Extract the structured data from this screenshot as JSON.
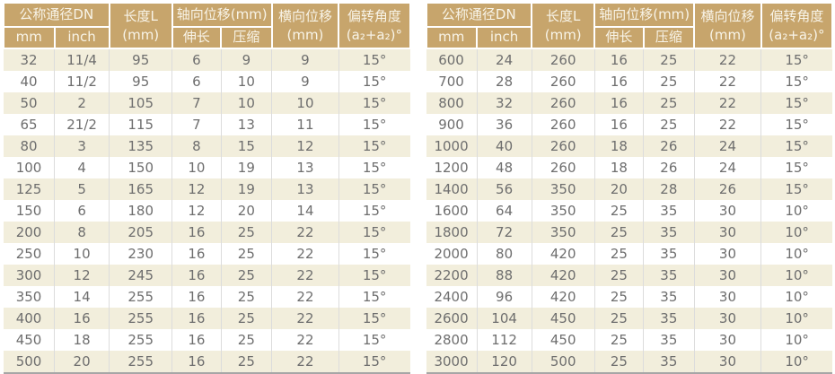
{
  "colors": {
    "header_bg": "#c7a56c",
    "header_text": "#f8f4e8",
    "stripe_row_bg": "#f2eedc",
    "plain_row_bg": "#ffffff",
    "body_text": "#6e6e6e",
    "column_divider": "#dcdcdc",
    "bottom_border": "#a6a6a6"
  },
  "header": {
    "dn": "公称通径DN",
    "mm": "mm",
    "inch": "inch",
    "length_line1": "长度L",
    "length_line2": "(mm)",
    "axial": "轴向位移(mm)",
    "elongation": "伸长",
    "compression": "压缩",
    "lateral_line1": "横向位移",
    "lateral_line2": "(mm)",
    "angle_line1": "偏转角度",
    "angle_line2": "(a₂+a₂)°"
  },
  "tables": [
    {
      "rows": [
        [
          "32",
          "11/4",
          "95",
          "6",
          "9",
          "9",
          "15°"
        ],
        [
          "40",
          "11/2",
          "95",
          "6",
          "10",
          "9",
          "15°"
        ],
        [
          "50",
          "2",
          "105",
          "7",
          "10",
          "10",
          "15°"
        ],
        [
          "65",
          "21/2",
          "115",
          "7",
          "13",
          "11",
          "15°"
        ],
        [
          "80",
          "3",
          "135",
          "8",
          "15",
          "12",
          "15°"
        ],
        [
          "100",
          "4",
          "150",
          "10",
          "19",
          "13",
          "15°"
        ],
        [
          "125",
          "5",
          "165",
          "12",
          "19",
          "13",
          "15°"
        ],
        [
          "150",
          "6",
          "180",
          "12",
          "20",
          "14",
          "15°"
        ],
        [
          "200",
          "8",
          "205",
          "16",
          "25",
          "22",
          "15°"
        ],
        [
          "250",
          "10",
          "230",
          "16",
          "25",
          "22",
          "15°"
        ],
        [
          "300",
          "12",
          "245",
          "16",
          "25",
          "22",
          "15°"
        ],
        [
          "350",
          "14",
          "255",
          "16",
          "25",
          "22",
          "15°"
        ],
        [
          "400",
          "16",
          "255",
          "16",
          "25",
          "22",
          "15°"
        ],
        [
          "450",
          "18",
          "255",
          "16",
          "25",
          "22",
          "15°"
        ],
        [
          "500",
          "20",
          "255",
          "16",
          "25",
          "22",
          "15°"
        ]
      ]
    },
    {
      "rows": [
        [
          "600",
          "24",
          "260",
          "16",
          "25",
          "22",
          "15°"
        ],
        [
          "700",
          "28",
          "260",
          "16",
          "25",
          "22",
          "15°"
        ],
        [
          "800",
          "32",
          "260",
          "16",
          "25",
          "22",
          "15°"
        ],
        [
          "900",
          "36",
          "260",
          "16",
          "25",
          "22",
          "15°"
        ],
        [
          "1000",
          "40",
          "260",
          "18",
          "26",
          "24",
          "15°"
        ],
        [
          "1200",
          "48",
          "260",
          "18",
          "26",
          "24",
          "15°"
        ],
        [
          "1400",
          "56",
          "350",
          "20",
          "28",
          "26",
          "15°"
        ],
        [
          "1600",
          "64",
          "350",
          "25",
          "35",
          "30",
          "10°"
        ],
        [
          "1800",
          "72",
          "350",
          "25",
          "35",
          "30",
          "10°"
        ],
        [
          "2000",
          "80",
          "420",
          "25",
          "35",
          "30",
          "10°"
        ],
        [
          "2200",
          "88",
          "420",
          "25",
          "35",
          "30",
          "10°"
        ],
        [
          "2400",
          "96",
          "420",
          "25",
          "35",
          "30",
          "10°"
        ],
        [
          "2600",
          "104",
          "450",
          "25",
          "35",
          "30",
          "10°"
        ],
        [
          "2800",
          "112",
          "450",
          "25",
          "35",
          "30",
          "10°"
        ],
        [
          "3000",
          "120",
          "500",
          "25",
          "35",
          "30",
          "10°"
        ]
      ]
    }
  ]
}
